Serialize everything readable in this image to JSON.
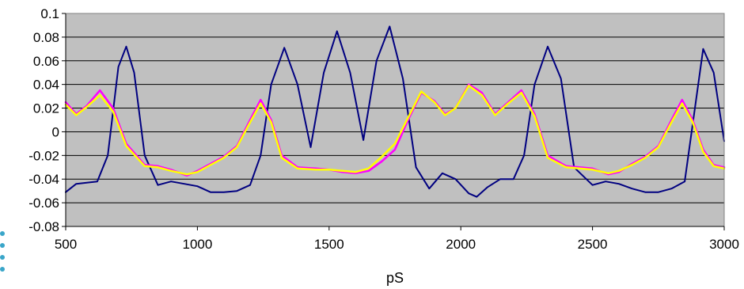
{
  "chart_data": {
    "type": "line",
    "title": "",
    "xlabel": "pS",
    "ylabel": "",
    "xlim": [
      500,
      3000
    ],
    "ylim": [
      -0.08,
      0.1
    ],
    "xticks": [
      "500",
      "1000",
      "1500",
      "2000",
      "2500",
      "3000"
    ],
    "yticks": [
      "-0.08",
      "-0.06",
      "-0.04",
      "-0.02",
      "0",
      "0.02",
      "0.04",
      "0.06",
      "0.08",
      "0.1"
    ],
    "grid": true,
    "legend": "none",
    "plot_background": "#c0c0c0",
    "series": [
      {
        "color": "#000080",
        "x": [
          500,
          540,
          580,
          620,
          660,
          700,
          730,
          760,
          800,
          850,
          900,
          950,
          1000,
          1050,
          1100,
          1150,
          1200,
          1240,
          1280,
          1330,
          1380,
          1430,
          1480,
          1530,
          1580,
          1630,
          1680,
          1730,
          1780,
          1830,
          1880,
          1930,
          1980,
          2030,
          2060,
          2100,
          2150,
          2200,
          2240,
          2280,
          2330,
          2380,
          2430,
          2500,
          2550,
          2600,
          2650,
          2700,
          2750,
          2800,
          2850,
          2920,
          2960,
          3000
        ],
        "y": [
          -0.051,
          -0.044,
          -0.043,
          -0.042,
          -0.02,
          0.055,
          0.072,
          0.05,
          -0.02,
          -0.045,
          -0.042,
          -0.044,
          -0.046,
          -0.051,
          -0.051,
          -0.05,
          -0.045,
          -0.02,
          0.04,
          0.071,
          0.04,
          -0.013,
          0.05,
          0.085,
          0.05,
          -0.007,
          0.06,
          0.089,
          0.045,
          -0.03,
          -0.048,
          -0.035,
          -0.04,
          -0.052,
          -0.055,
          -0.047,
          -0.04,
          -0.04,
          -0.02,
          0.04,
          0.072,
          0.045,
          -0.03,
          -0.045,
          -0.042,
          -0.044,
          -0.048,
          -0.051,
          -0.051,
          -0.048,
          -0.042,
          0.07,
          0.05,
          -0.008
        ]
      },
      {
        "color": "#ff00ff",
        "x": [
          500,
          540,
          580,
          630,
          680,
          730,
          800,
          850,
          900,
          960,
          1000,
          1050,
          1100,
          1150,
          1200,
          1240,
          1280,
          1320,
          1380,
          1450,
          1500,
          1550,
          1600,
          1650,
          1700,
          1750,
          1800,
          1850,
          1900,
          1940,
          1980,
          2030,
          2080,
          2130,
          2180,
          2230,
          2280,
          2330,
          2400,
          2450,
          2500,
          2560,
          2600,
          2650,
          2700,
          2750,
          2800,
          2840,
          2880,
          2920,
          2960,
          3000
        ],
        "y": [
          0.025,
          0.015,
          0.022,
          0.035,
          0.02,
          -0.01,
          -0.028,
          -0.029,
          -0.032,
          -0.037,
          -0.033,
          -0.027,
          -0.021,
          -0.012,
          0.01,
          0.027,
          0.01,
          -0.02,
          -0.03,
          -0.031,
          -0.032,
          -0.034,
          -0.035,
          -0.033,
          -0.025,
          -0.015,
          0.01,
          0.033,
          0.026,
          0.015,
          0.02,
          0.04,
          0.033,
          0.015,
          0.025,
          0.035,
          0.015,
          -0.02,
          -0.029,
          -0.03,
          -0.031,
          -0.036,
          -0.034,
          -0.027,
          -0.021,
          -0.012,
          0.01,
          0.027,
          0.01,
          -0.015,
          -0.028,
          -0.03
        ]
      },
      {
        "color": "#ffff00",
        "x": [
          500,
          540,
          580,
          630,
          680,
          730,
          800,
          850,
          900,
          960,
          1000,
          1050,
          1100,
          1150,
          1200,
          1240,
          1280,
          1320,
          1380,
          1450,
          1500,
          1550,
          1600,
          1650,
          1700,
          1750,
          1800,
          1850,
          1900,
          1940,
          1980,
          2030,
          2080,
          2130,
          2180,
          2230,
          2280,
          2330,
          2400,
          2450,
          2500,
          2560,
          2600,
          2650,
          2700,
          2750,
          2800,
          2840,
          2880,
          2920,
          2960,
          3000
        ],
        "y": [
          0.023,
          0.014,
          0.021,
          0.031,
          0.017,
          -0.012,
          -0.029,
          -0.03,
          -0.033,
          -0.036,
          -0.034,
          -0.028,
          -0.022,
          -0.013,
          0.008,
          0.024,
          0.008,
          -0.022,
          -0.031,
          -0.032,
          -0.032,
          -0.033,
          -0.034,
          -0.031,
          -0.021,
          -0.01,
          0.012,
          0.034,
          0.025,
          0.014,
          0.02,
          0.039,
          0.031,
          0.014,
          0.024,
          0.033,
          0.013,
          -0.022,
          -0.03,
          -0.031,
          -0.032,
          -0.035,
          -0.033,
          -0.028,
          -0.022,
          -0.013,
          0.008,
          0.024,
          0.008,
          -0.017,
          -0.029,
          -0.031
        ]
      }
    ]
  }
}
